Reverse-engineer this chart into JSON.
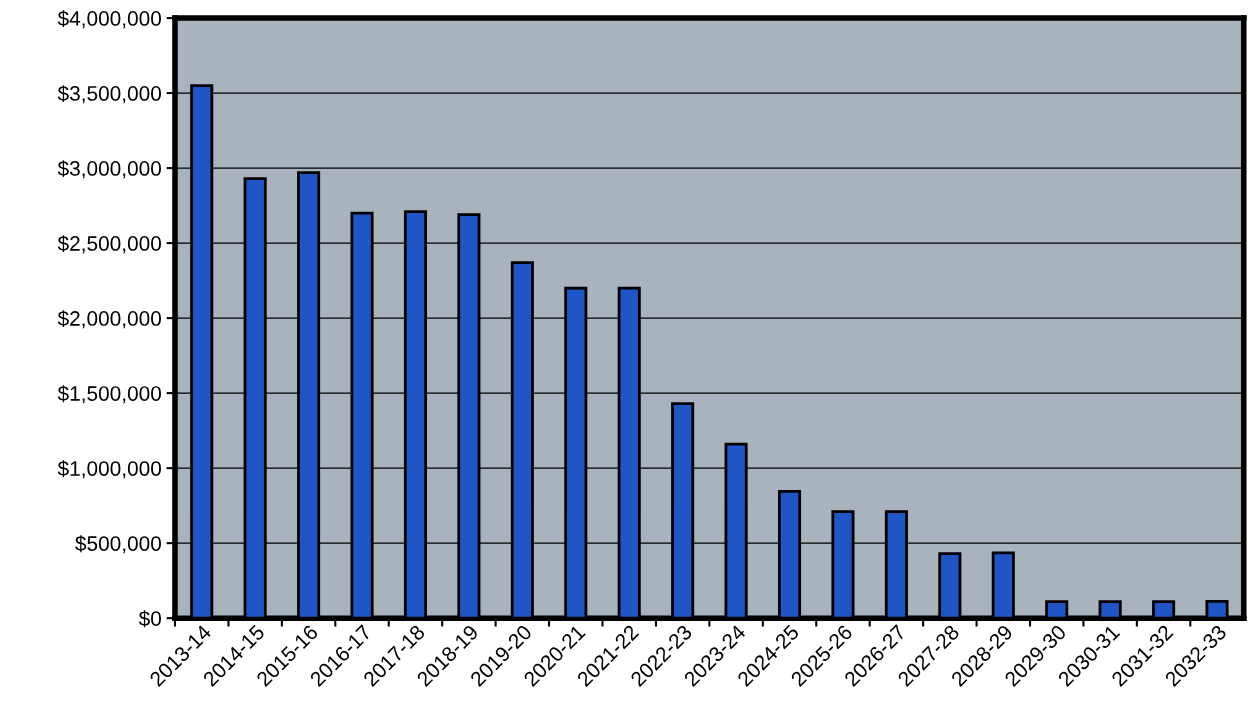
{
  "chart_data": {
    "type": "bar",
    "categories": [
      "2013-14",
      "2014-15",
      "2015-16",
      "2016-17",
      "2017-18",
      "2018-19",
      "2019-20",
      "2020-21",
      "2021-22",
      "2022-23",
      "2023-24",
      "2024-25",
      "2025-26",
      "2026-27",
      "2027-28",
      "2028-29",
      "2029-30",
      "2030-31",
      "2031-32",
      "2032-33"
    ],
    "values": [
      3550000,
      2930000,
      2970000,
      2700000,
      2710000,
      2690000,
      2370000,
      2200000,
      2200000,
      1430000,
      1160000,
      845000,
      710000,
      710000,
      430000,
      435000,
      110000,
      110000,
      110000,
      112000
    ],
    "color": "#1f55c4",
    "ylim": [
      0,
      4000000
    ],
    "yticks": [
      {
        "value": 0,
        "label": "$0"
      },
      {
        "value": 500000,
        "label": "$500,000"
      },
      {
        "value": 1000000,
        "label": "$1,000,000"
      },
      {
        "value": 1500000,
        "label": "$1,500,000"
      },
      {
        "value": 2000000,
        "label": "$2,000,000"
      },
      {
        "value": 2500000,
        "label": "$2,500,000"
      },
      {
        "value": 3000000,
        "label": "$3,000,000"
      },
      {
        "value": 3500000,
        "label": "$3,500,000"
      },
      {
        "value": 4000000,
        "label": "$4,000,000"
      }
    ],
    "grid": "y"
  }
}
